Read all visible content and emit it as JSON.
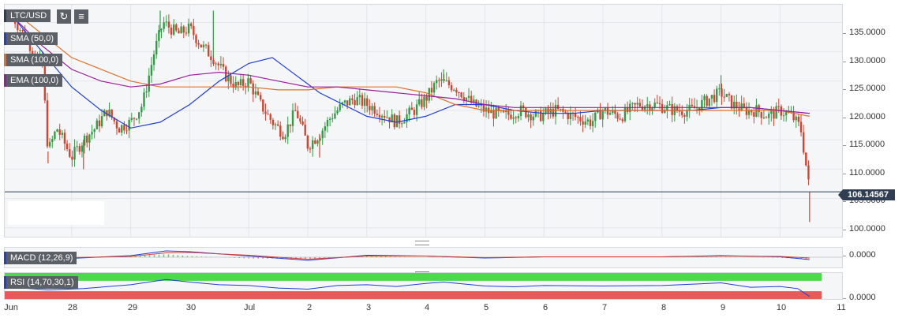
{
  "header": {
    "symbol": "LTC/USD",
    "refresh_icon": "refresh-icon",
    "chart_type_icon": "chart-type-icon"
  },
  "indicators": [
    {
      "label": "SMA (50,0)",
      "color": "#1f3fd8"
    },
    {
      "label": "SMA (100,0)",
      "color": "#e0702a"
    },
    {
      "label": "EMA (100,0)",
      "color": "#9b1f9b"
    }
  ],
  "macd": {
    "label": "MACD (12,26,9)",
    "scale_label": "0.0000"
  },
  "rsi": {
    "label": "RSI (14,70,30,1)",
    "scale_label": "0.0000",
    "overbought_color": "#4cd94c",
    "oversold_color": "#e85a5a"
  },
  "price_scale": [
    "135.0000",
    "130.0000",
    "125.0000",
    "120.0000",
    "115.0000",
    "110.0000",
    "105.0000",
    "100.0000"
  ],
  "current_price": "106.14567",
  "x_axis": [
    "Jun",
    "28",
    "29",
    "30",
    "Jul",
    "2",
    "3",
    "4",
    "5",
    "6",
    "7",
    "8",
    "9",
    "10",
    "11"
  ],
  "colors": {
    "up": "#2f9e44",
    "down": "#d9412f",
    "price_line": "#2f3e52",
    "sma50": "#1f3fd8",
    "sma100": "#e0702a",
    "ema100": "#9b1f9b"
  },
  "chart_data": {
    "type": "candlestick",
    "title": "LTC/USD",
    "ylim": [
      98.5,
      138
    ],
    "x": [
      "Jun 27",
      "Jun 28",
      "Jun 29",
      "Jun 30",
      "Jul 1",
      "Jul 2",
      "Jul 3",
      "Jul 4",
      "Jul 5",
      "Jul 6",
      "Jul 7",
      "Jul 8",
      "Jul 9",
      "Jul 10",
      "Jul 11"
    ],
    "close_path": [
      [
        0,
        136
      ],
      [
        0.3,
        131
      ],
      [
        0.5,
        128
      ],
      [
        0.6,
        113
      ],
      [
        0.75,
        117
      ],
      [
        0.9,
        114
      ],
      [
        1.0,
        112
      ],
      [
        1.2,
        115
      ],
      [
        1.4,
        117
      ],
      [
        1.6,
        120
      ],
      [
        1.8,
        117
      ],
      [
        2.0,
        118
      ],
      [
        2.2,
        121
      ],
      [
        2.4,
        130
      ],
      [
        2.55,
        135
      ],
      [
        2.8,
        133
      ],
      [
        3.0,
        134
      ],
      [
        3.2,
        131
      ],
      [
        3.4,
        129
      ],
      [
        3.6,
        126
      ],
      [
        3.8,
        124
      ],
      [
        4.0,
        125
      ],
      [
        4.2,
        121
      ],
      [
        4.4,
        118
      ],
      [
        4.6,
        116
      ],
      [
        4.8,
        120
      ],
      [
        5.0,
        114
      ],
      [
        5.2,
        116
      ],
      [
        5.4,
        119
      ],
      [
        5.6,
        121
      ],
      [
        5.8,
        122
      ],
      [
        6.0,
        121
      ],
      [
        6.2,
        120
      ],
      [
        6.5,
        118
      ],
      [
        6.8,
        120
      ],
      [
        7.0,
        122
      ],
      [
        7.2,
        125
      ],
      [
        7.5,
        124
      ],
      [
        7.8,
        121
      ],
      [
        8.0,
        120
      ],
      [
        8.3,
        119
      ],
      [
        8.6,
        120
      ],
      [
        8.9,
        119
      ],
      [
        9.2,
        120
      ],
      [
        9.5,
        119
      ],
      [
        9.8,
        118
      ],
      [
        10.0,
        120
      ],
      [
        10.3,
        119
      ],
      [
        10.6,
        121
      ],
      [
        10.9,
        121
      ],
      [
        11.2,
        120
      ],
      [
        11.5,
        120
      ],
      [
        11.8,
        122
      ],
      [
        12.0,
        123
      ],
      [
        12.2,
        121
      ],
      [
        12.4,
        120
      ],
      [
        12.6,
        120
      ],
      [
        12.8,
        119
      ],
      [
        13.0,
        120
      ],
      [
        13.2,
        119
      ],
      [
        13.35,
        117
      ],
      [
        13.45,
        110
      ],
      [
        13.5,
        106.14567
      ]
    ],
    "lows": [
      [
        0.6,
        111
      ],
      [
        1.2,
        110
      ],
      [
        5.2,
        112
      ],
      [
        13.5,
        101
      ]
    ],
    "highs": [
      [
        2.5,
        137
      ],
      [
        3.4,
        137
      ],
      [
        7.3,
        127
      ],
      [
        12.0,
        126
      ]
    ],
    "series": [
      {
        "name": "SMA (50,0)",
        "points": [
          [
            0,
            136
          ],
          [
            0.5,
            130
          ],
          [
            1.0,
            124
          ],
          [
            1.5,
            120
          ],
          [
            2.0,
            117
          ],
          [
            2.5,
            118
          ],
          [
            3.0,
            121
          ],
          [
            3.5,
            125
          ],
          [
            4.0,
            128
          ],
          [
            4.4,
            129
          ],
          [
            4.8,
            126
          ],
          [
            5.2,
            123
          ],
          [
            5.6,
            121
          ],
          [
            6.0,
            119
          ],
          [
            6.5,
            118
          ],
          [
            7.0,
            119
          ],
          [
            7.5,
            121
          ],
          [
            8.0,
            121
          ],
          [
            8.5,
            120
          ],
          [
            9.0,
            119.5
          ],
          [
            9.5,
            119.5
          ],
          [
            10.0,
            120
          ],
          [
            10.5,
            120
          ],
          [
            11.0,
            120
          ],
          [
            11.5,
            120
          ],
          [
            12.0,
            120.5
          ],
          [
            12.5,
            120.5
          ],
          [
            13.0,
            120
          ],
          [
            13.5,
            119.5
          ]
        ]
      },
      {
        "name": "SMA (100,0)",
        "points": [
          [
            0,
            137
          ],
          [
            0.5,
            133
          ],
          [
            1.0,
            129
          ],
          [
            1.5,
            127
          ],
          [
            2.0,
            125
          ],
          [
            2.5,
            124
          ],
          [
            3.0,
            124
          ],
          [
            3.5,
            124
          ],
          [
            4.0,
            124
          ],
          [
            4.5,
            123.5
          ],
          [
            5.0,
            123.5
          ],
          [
            5.5,
            124
          ],
          [
            6.0,
            124
          ],
          [
            6.5,
            124
          ],
          [
            7.0,
            123
          ],
          [
            7.5,
            121
          ],
          [
            8.0,
            120
          ],
          [
            8.5,
            120
          ],
          [
            9.0,
            120
          ],
          [
            9.5,
            120
          ],
          [
            10.0,
            120
          ],
          [
            10.5,
            120
          ],
          [
            11.0,
            120
          ],
          [
            11.5,
            120
          ],
          [
            12.0,
            120
          ],
          [
            12.5,
            120
          ],
          [
            13.0,
            120
          ],
          [
            13.5,
            119
          ]
        ]
      },
      {
        "name": "EMA (100,0)",
        "points": [
          [
            0,
            136
          ],
          [
            0.5,
            131
          ],
          [
            1.0,
            127
          ],
          [
            1.5,
            125
          ],
          [
            2.0,
            124
          ],
          [
            2.5,
            124.5
          ],
          [
            3.0,
            126
          ],
          [
            3.5,
            126.5
          ],
          [
            4.0,
            126
          ],
          [
            4.5,
            125
          ],
          [
            5.0,
            124
          ],
          [
            5.5,
            124
          ],
          [
            6.0,
            123.5
          ],
          [
            6.5,
            123
          ],
          [
            7.0,
            122.5
          ],
          [
            7.5,
            122
          ],
          [
            8.0,
            121
          ],
          [
            8.5,
            120.5
          ],
          [
            9.0,
            120.5
          ],
          [
            9.5,
            120.5
          ],
          [
            10.0,
            120.5
          ],
          [
            10.5,
            120.5
          ],
          [
            11.0,
            120.5
          ],
          [
            11.5,
            120.5
          ],
          [
            12.0,
            120.5
          ],
          [
            12.5,
            120.5
          ],
          [
            13.0,
            120
          ],
          [
            13.5,
            119.5
          ]
        ]
      }
    ],
    "macd_values": {
      "macd": [
        [
          0,
          0
        ],
        [
          1,
          -0.3
        ],
        [
          2,
          0.4
        ],
        [
          2.6,
          1.6
        ],
        [
          3,
          1.4
        ],
        [
          4,
          0.3
        ],
        [
          5,
          -0.8
        ],
        [
          6,
          0.5
        ],
        [
          7,
          0.3
        ],
        [
          8,
          -0.2
        ],
        [
          9,
          0.1
        ],
        [
          10,
          0.1
        ],
        [
          11,
          0.1
        ],
        [
          12,
          0.4
        ],
        [
          13,
          0.1
        ],
        [
          13.5,
          -0.6
        ]
      ],
      "signal": [
        [
          0,
          0.1
        ],
        [
          1,
          -0.1
        ],
        [
          2,
          0.2
        ],
        [
          2.6,
          1.1
        ],
        [
          3,
          1.2
        ],
        [
          4,
          0.5
        ],
        [
          5,
          -0.5
        ],
        [
          6,
          0.3
        ],
        [
          7,
          0.3
        ],
        [
          8,
          -0.1
        ],
        [
          9,
          0.1
        ],
        [
          10,
          0.1
        ],
        [
          11,
          0.1
        ],
        [
          12,
          0.3
        ],
        [
          13,
          0.2
        ],
        [
          13.5,
          -0.2
        ]
      ]
    },
    "rsi_values": [
      [
        0,
        45
      ],
      [
        0.6,
        35
      ],
      [
        1.2,
        40
      ],
      [
        2.0,
        55
      ],
      [
        2.6,
        75
      ],
      [
        3.0,
        65
      ],
      [
        3.5,
        55
      ],
      [
        4.0,
        52
      ],
      [
        4.5,
        42
      ],
      [
        5.0,
        38
      ],
      [
        5.5,
        52
      ],
      [
        6.0,
        55
      ],
      [
        6.5,
        48
      ],
      [
        7.0,
        60
      ],
      [
        7.3,
        65
      ],
      [
        8.0,
        50
      ],
      [
        8.5,
        47
      ],
      [
        9.0,
        52
      ],
      [
        10.0,
        50
      ],
      [
        11.0,
        52
      ],
      [
        12.0,
        62
      ],
      [
        12.5,
        45
      ],
      [
        13.0,
        48
      ],
      [
        13.3,
        40
      ],
      [
        13.5,
        10
      ]
    ]
  }
}
